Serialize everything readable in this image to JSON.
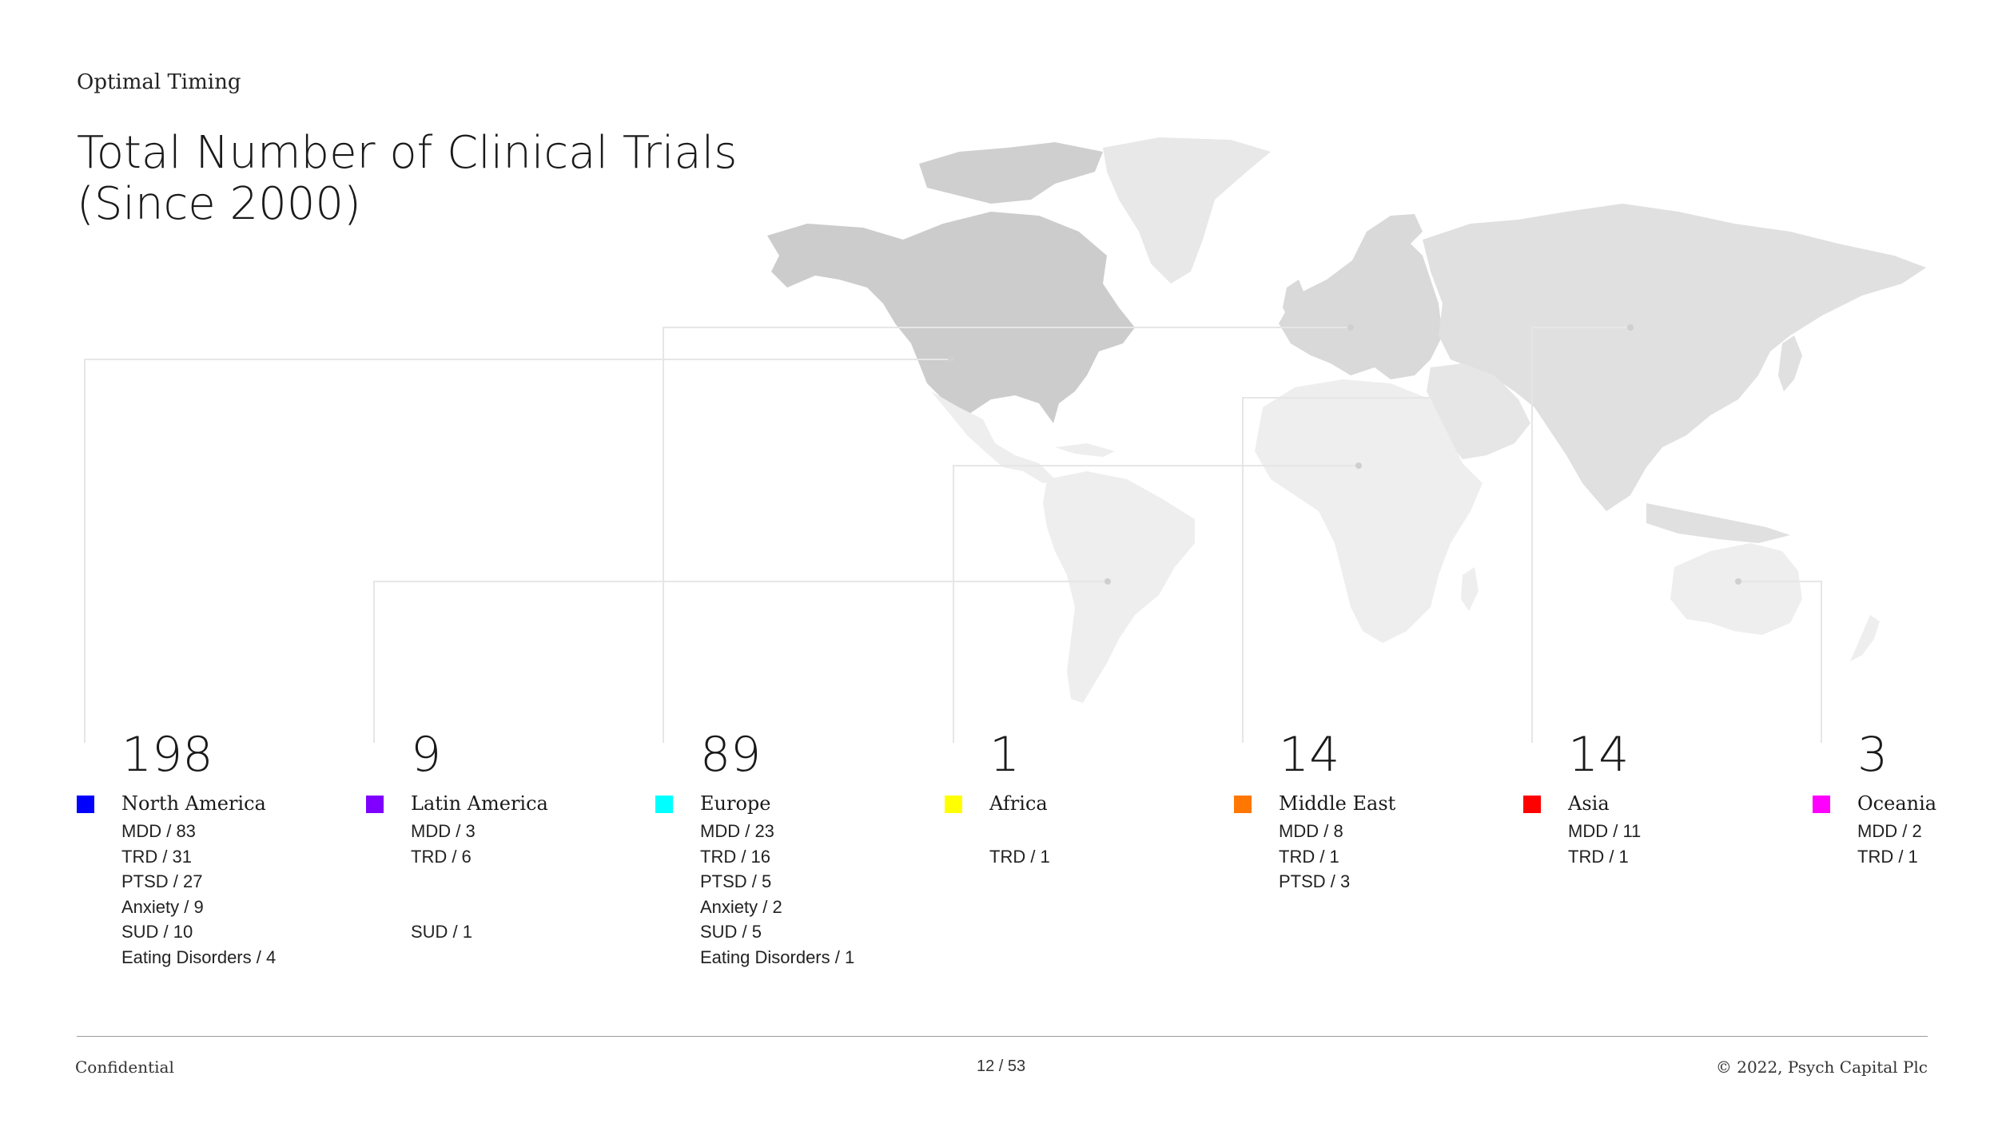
{
  "header": {
    "section": "Optimal Timing",
    "title_line1": "Total Number of Clinical Trials",
    "title_line2": "(Since 2000)"
  },
  "regions": [
    {
      "count": "198",
      "name": "North America",
      "color": "#0000ff",
      "items": [
        "MDD / 83",
        "TRD / 31",
        "PTSD / 27",
        "Anxiety / 9",
        "SUD / 10",
        "Eating Disorders / 4"
      ]
    },
    {
      "count": "9",
      "name": "Latin America",
      "color": "#7f00ff",
      "items": [
        "MDD / 3",
        "TRD / 6",
        "",
        "",
        "SUD / 1",
        ""
      ]
    },
    {
      "count": "89",
      "name": "Europe",
      "color": "#00ffff",
      "items": [
        "MDD / 23",
        "TRD / 16",
        "PTSD / 5",
        "Anxiety / 2",
        "SUD / 5",
        "Eating Disorders / 1"
      ]
    },
    {
      "count": "1",
      "name": "Africa",
      "color": "#ffff00",
      "items": [
        "",
        "TRD / 1",
        "",
        "",
        "",
        ""
      ]
    },
    {
      "count": "14",
      "name": "Middle East",
      "color": "#ff7700",
      "items": [
        "MDD / 8",
        "TRD / 1",
        "PTSD / 3",
        "",
        "",
        ""
      ]
    },
    {
      "count": "14",
      "name": "Asia",
      "color": "#ff0000",
      "items": [
        "MDD / 11",
        "TRD / 1",
        "",
        "",
        "",
        ""
      ]
    },
    {
      "count": "3",
      "name": "Oceania",
      "color": "#ff00ff",
      "items": [
        "MDD / 2",
        "TRD / 1",
        "",
        "",
        "",
        ""
      ]
    }
  ],
  "footer": {
    "left": "Confidential",
    "center": "12 / 53",
    "right": "© 2022, Psych Capital Plc"
  }
}
